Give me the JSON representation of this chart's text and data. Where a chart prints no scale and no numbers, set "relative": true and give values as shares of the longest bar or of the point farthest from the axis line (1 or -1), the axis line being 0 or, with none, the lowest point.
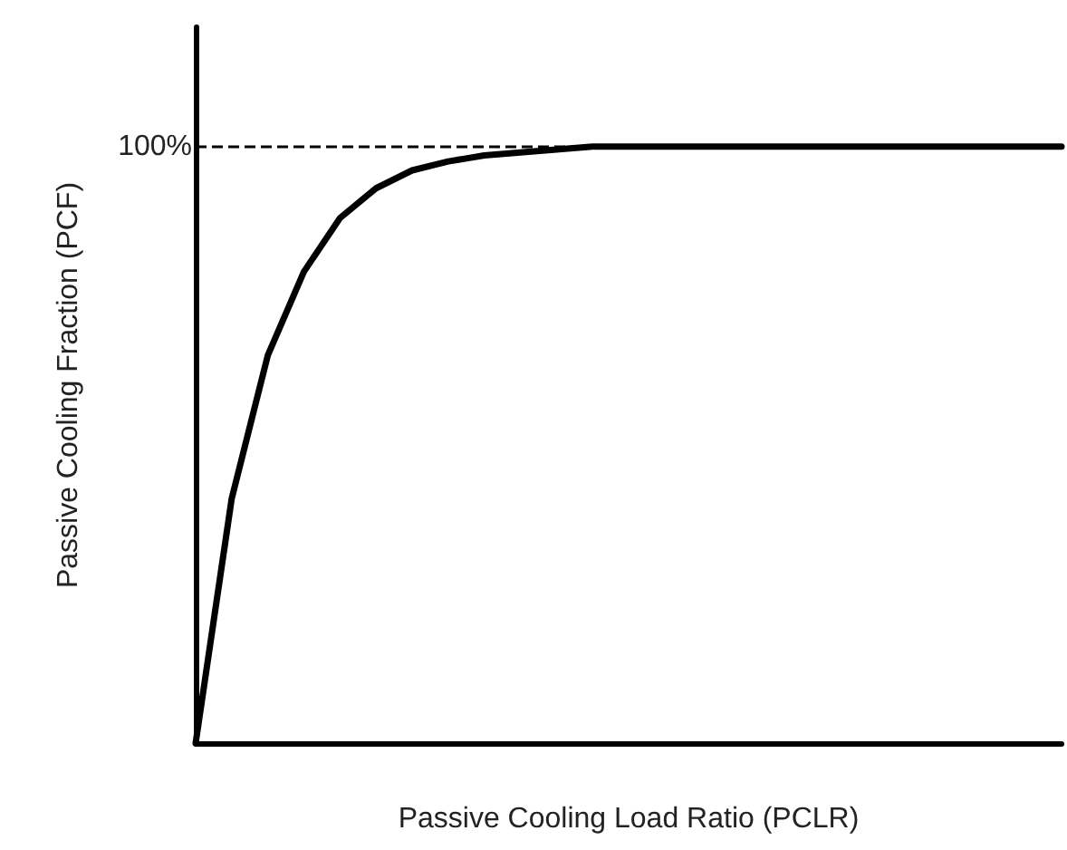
{
  "chart_data": {
    "type": "line",
    "relative": true,
    "xlabel": "Passive Cooling Load Ratio (PCLR)",
    "ylabel": "Passive Cooling Fraction (PCF)",
    "categories": [
      null,
      null,
      null,
      null,
      null,
      null,
      null,
      null,
      null,
      null,
      null,
      null,
      null,
      null,
      null,
      null,
      null,
      null,
      null,
      null,
      null,
      null,
      null,
      null,
      null
    ],
    "series": [
      {
        "color": "#000000",
        "values": [
          0,
          0.41,
          0.65,
          0.79,
          0.88,
          0.93,
          0.96,
          0.975,
          0.985,
          0.99,
          0.995,
          1,
          1,
          1,
          1,
          1,
          1,
          1,
          1,
          1,
          1,
          1,
          1,
          1,
          1
        ]
      }
    ],
    "ref_lines": [
      {
        "axis": "y",
        "value": 1,
        "label": "100%",
        "color": "#000000",
        "line_style": "dashed"
      }
    ],
    "grid": false,
    "marker": "none",
    "line_style": "solid"
  }
}
